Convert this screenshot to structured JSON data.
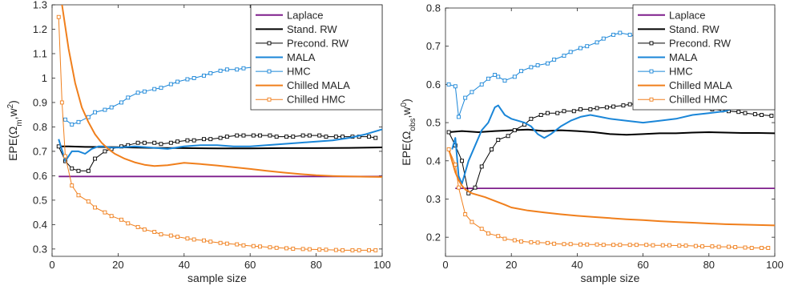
{
  "chart_data": [
    {
      "type": "line",
      "xlabel": "sample size",
      "ylabel_base": "EPE(Ω",
      "ylabel_sub": "m",
      "ylabel_mid": ",w",
      "ylabel_sup": "2",
      "ylabel_end": ")",
      "xlim": [
        0,
        100
      ],
      "ylim": [
        0.27,
        1.3
      ],
      "xticks": [
        0,
        20,
        40,
        60,
        80,
        100
      ],
      "yticks": [
        0.3,
        0.4,
        0.5,
        0.6,
        0.7,
        0.8,
        0.9,
        1,
        1.1,
        1.2,
        1.3
      ],
      "legend_position": "top-right",
      "series": [
        {
          "name": "Laplace",
          "color": "#7e1e8c",
          "marker": "none",
          "x": [
            2,
            100
          ],
          "y": [
            0.597,
            0.597
          ]
        },
        {
          "name": "Stand. RW",
          "color": "#000000",
          "marker": "none",
          "x": [
            2,
            5,
            10,
            20,
            30,
            40,
            50,
            60,
            70,
            80,
            90,
            100
          ],
          "y": [
            0.72,
            0.72,
            0.718,
            0.717,
            0.714,
            0.713,
            0.712,
            0.712,
            0.713,
            0.713,
            0.714,
            0.716
          ]
        },
        {
          "name": "Precond. RW",
          "color": "#000000",
          "marker": "square",
          "x": [
            2,
            4,
            6,
            8,
            11,
            13,
            16,
            18,
            21,
            23,
            26,
            28,
            31,
            33,
            36,
            38,
            41,
            43,
            46,
            48,
            51,
            53,
            56,
            58,
            61,
            63,
            66,
            68,
            71,
            73,
            76,
            78,
            81,
            83,
            86,
            88,
            91,
            93,
            96,
            98
          ],
          "y": [
            0.72,
            0.66,
            0.63,
            0.62,
            0.62,
            0.67,
            0.7,
            0.71,
            0.72,
            0.725,
            0.735,
            0.735,
            0.735,
            0.73,
            0.735,
            0.74,
            0.745,
            0.745,
            0.75,
            0.75,
            0.755,
            0.76,
            0.765,
            0.765,
            0.765,
            0.765,
            0.765,
            0.76,
            0.76,
            0.76,
            0.765,
            0.765,
            0.765,
            0.76,
            0.76,
            0.76,
            0.76,
            0.76,
            0.76,
            0.755
          ]
        },
        {
          "name": "MALA",
          "color": "#1a86d8",
          "marker": "none",
          "x": [
            2,
            4,
            6,
            8,
            10,
            12,
            14,
            16,
            18,
            20,
            25,
            30,
            35,
            40,
            45,
            50,
            55,
            60,
            65,
            70,
            75,
            80,
            85,
            90,
            95,
            100
          ],
          "y": [
            0.75,
            0.66,
            0.7,
            0.7,
            0.69,
            0.71,
            0.72,
            0.72,
            0.715,
            0.715,
            0.72,
            0.715,
            0.71,
            0.72,
            0.725,
            0.725,
            0.72,
            0.72,
            0.725,
            0.73,
            0.735,
            0.74,
            0.745,
            0.755,
            0.77,
            0.79
          ]
        },
        {
          "name": "HMC",
          "color": "#1a86d8",
          "marker": "square",
          "x": [
            4,
            6,
            8,
            11,
            13,
            16,
            18,
            21,
            23,
            26,
            28,
            31,
            33,
            36,
            38,
            41,
            43,
            46,
            48,
            51,
            53,
            56,
            58,
            61,
            63,
            66,
            68,
            71,
            73,
            76,
            78,
            81,
            83,
            86,
            88,
            91,
            93,
            96,
            98,
            100
          ],
          "y": [
            0.83,
            0.81,
            0.82,
            0.84,
            0.86,
            0.87,
            0.88,
            0.9,
            0.92,
            0.94,
            0.945,
            0.955,
            0.96,
            0.975,
            0.985,
            0.995,
            1.0,
            1.01,
            1.02,
            1.03,
            1.035,
            1.035,
            1.04,
            1.045,
            1.05,
            1.06,
            1.065,
            1.075,
            1.08,
            1.085,
            1.09,
            1.095,
            1.1,
            1.105,
            1.11,
            1.115,
            1.12,
            1.125,
            1.13,
            1.135
          ]
        },
        {
          "name": "Chilled MALA",
          "color": "#f07f1c",
          "marker": "none",
          "x": [
            3,
            5,
            7,
            9,
            11,
            13,
            15,
            17,
            19,
            22,
            25,
            28,
            31,
            35,
            40,
            45,
            50,
            55,
            60,
            65,
            70,
            75,
            80,
            85,
            90,
            95,
            100
          ],
          "y": [
            1.3,
            1.12,
            0.98,
            0.88,
            0.82,
            0.77,
            0.735,
            0.71,
            0.69,
            0.67,
            0.655,
            0.645,
            0.64,
            0.643,
            0.653,
            0.648,
            0.642,
            0.635,
            0.628,
            0.62,
            0.613,
            0.607,
            0.602,
            0.599,
            0.597,
            0.596,
            0.595
          ]
        },
        {
          "name": "Chilled HMC",
          "color": "#f07f1c",
          "marker": "square",
          "x": [
            2,
            3,
            4,
            6,
            8,
            11,
            13,
            16,
            18,
            21,
            23,
            26,
            28,
            31,
            33,
            36,
            38,
            41,
            43,
            46,
            48,
            51,
            53,
            56,
            58,
            61,
            63,
            66,
            68,
            71,
            73,
            76,
            78,
            81,
            83,
            86,
            88,
            91,
            93,
            96,
            98
          ],
          "y": [
            1.25,
            0.9,
            0.68,
            0.56,
            0.52,
            0.495,
            0.47,
            0.45,
            0.435,
            0.42,
            0.405,
            0.39,
            0.38,
            0.37,
            0.36,
            0.355,
            0.35,
            0.343,
            0.339,
            0.335,
            0.33,
            0.325,
            0.322,
            0.319,
            0.315,
            0.312,
            0.31,
            0.307,
            0.305,
            0.303,
            0.301,
            0.3,
            0.299,
            0.298,
            0.297,
            0.296,
            0.295,
            0.295,
            0.295,
            0.295,
            0.295
          ]
        }
      ]
    },
    {
      "type": "line",
      "xlabel": "sample size",
      "ylabel_base": "EPE(Ω",
      "ylabel_sub": "obs",
      "ylabel_mid": ",w",
      "ylabel_sup": "0",
      "ylabel_end": ")",
      "xlim": [
        0,
        100
      ],
      "ylim": [
        0.15,
        0.8
      ],
      "xticks": [
        0,
        20,
        40,
        60,
        80,
        100
      ],
      "yticks": [
        0.2,
        0.3,
        0.4,
        0.5,
        0.6,
        0.7,
        0.8
      ],
      "legend_position": "top-right",
      "series": [
        {
          "name": "Laplace",
          "color": "#7e1e8c",
          "marker": "none",
          "x": [
            3,
            100
          ],
          "y": [
            0.328,
            0.328
          ]
        },
        {
          "name": "Stand. RW",
          "color": "#000000",
          "marker": "none",
          "x": [
            1,
            5,
            10,
            15,
            20,
            25,
            30,
            35,
            40,
            45,
            50,
            55,
            60,
            65,
            70,
            75,
            80,
            85,
            90,
            95,
            100
          ],
          "y": [
            0.475,
            0.478,
            0.475,
            0.478,
            0.48,
            0.482,
            0.478,
            0.48,
            0.478,
            0.475,
            0.47,
            0.468,
            0.47,
            0.472,
            0.472,
            0.474,
            0.475,
            0.474,
            0.473,
            0.473,
            0.472
          ]
        },
        {
          "name": "Precond. RW",
          "color": "#000000",
          "marker": "square",
          "x": [
            1,
            3,
            5,
            7,
            9,
            11,
            14,
            16,
            19,
            21,
            24,
            26,
            29,
            31,
            34,
            36,
            39,
            41,
            44,
            46,
            49,
            51,
            54,
            56,
            59,
            61,
            64,
            66,
            69,
            71,
            74,
            76,
            79,
            81,
            84,
            86,
            89,
            91,
            94,
            96,
            99
          ],
          "y": [
            0.475,
            0.44,
            0.4,
            0.315,
            0.33,
            0.385,
            0.43,
            0.455,
            0.465,
            0.48,
            0.495,
            0.51,
            0.52,
            0.525,
            0.525,
            0.53,
            0.53,
            0.535,
            0.535,
            0.538,
            0.54,
            0.542,
            0.545,
            0.548,
            0.55,
            0.552,
            0.552,
            0.55,
            0.548,
            0.545,
            0.545,
            0.542,
            0.54,
            0.535,
            0.532,
            0.53,
            0.528,
            0.525,
            0.522,
            0.52,
            0.518
          ]
        },
        {
          "name": "MALA",
          "color": "#1a86d8",
          "marker": "none",
          "x": [
            2,
            3,
            4,
            5,
            7,
            9,
            11,
            13,
            15,
            16,
            18,
            20,
            22,
            24,
            26,
            28,
            30,
            32,
            35,
            38,
            41,
            44,
            47,
            50,
            55,
            60,
            65,
            70,
            75,
            80,
            85,
            90,
            95,
            100
          ],
          "y": [
            0.43,
            0.46,
            0.36,
            0.34,
            0.4,
            0.44,
            0.48,
            0.5,
            0.54,
            0.545,
            0.52,
            0.51,
            0.505,
            0.5,
            0.49,
            0.47,
            0.46,
            0.47,
            0.49,
            0.505,
            0.515,
            0.52,
            0.515,
            0.51,
            0.505,
            0.5,
            0.505,
            0.51,
            0.52,
            0.525,
            0.53,
            0.545,
            0.565,
            0.58
          ]
        },
        {
          "name": "HMC",
          "color": "#1a86d8",
          "marker": "square",
          "x": [
            1,
            3,
            4,
            6,
            8,
            11,
            13,
            15,
            16,
            18,
            21,
            23,
            26,
            28,
            31,
            33,
            36,
            38,
            41,
            43,
            46,
            48,
            51,
            53,
            56,
            58,
            61,
            63,
            66,
            68,
            71,
            73,
            76,
            78,
            81,
            83,
            86,
            88,
            91,
            93,
            96,
            98,
            100
          ],
          "y": [
            0.6,
            0.595,
            0.515,
            0.565,
            0.58,
            0.6,
            0.615,
            0.625,
            0.62,
            0.61,
            0.62,
            0.635,
            0.645,
            0.65,
            0.655,
            0.665,
            0.675,
            0.685,
            0.695,
            0.7,
            0.71,
            0.72,
            0.73,
            0.735,
            0.73,
            0.725,
            0.72,
            0.715,
            0.71,
            0.705,
            0.7,
            0.69,
            0.68,
            0.67,
            0.66,
            0.645,
            0.63,
            0.615,
            0.605,
            0.595,
            0.59,
            0.585,
            0.58
          ]
        },
        {
          "name": "Chilled MALA",
          "color": "#f07f1c",
          "marker": "none",
          "x": [
            1,
            2,
            3,
            4,
            5,
            6,
            8,
            10,
            12,
            15,
            18,
            20,
            25,
            30,
            35,
            40,
            45,
            50,
            55,
            60,
            65,
            70,
            75,
            80,
            85,
            90,
            95,
            100
          ],
          "y": [
            0.43,
            0.4,
            0.37,
            0.35,
            0.335,
            0.325,
            0.315,
            0.31,
            0.305,
            0.295,
            0.285,
            0.278,
            0.27,
            0.265,
            0.26,
            0.256,
            0.253,
            0.25,
            0.247,
            0.245,
            0.242,
            0.24,
            0.238,
            0.236,
            0.234,
            0.233,
            0.232,
            0.231
          ]
        },
        {
          "name": "Chilled HMC",
          "color": "#f07f1c",
          "marker": "square",
          "x": [
            1,
            3,
            4,
            6,
            8,
            11,
            13,
            16,
            18,
            21,
            23,
            26,
            28,
            31,
            33,
            36,
            38,
            41,
            43,
            46,
            48,
            51,
            53,
            56,
            58,
            61,
            63,
            66,
            68,
            71,
            73,
            76,
            78,
            81,
            83,
            86,
            88,
            91,
            93,
            96,
            98
          ],
          "y": [
            0.43,
            0.39,
            0.33,
            0.26,
            0.24,
            0.222,
            0.21,
            0.203,
            0.196,
            0.192,
            0.189,
            0.187,
            0.186,
            0.185,
            0.183,
            0.182,
            0.182,
            0.181,
            0.181,
            0.181,
            0.18,
            0.18,
            0.18,
            0.18,
            0.18,
            0.18,
            0.179,
            0.179,
            0.179,
            0.178,
            0.178,
            0.177,
            0.176,
            0.176,
            0.175,
            0.175,
            0.174,
            0.173,
            0.172,
            0.172,
            0.172
          ]
        }
      ]
    }
  ]
}
